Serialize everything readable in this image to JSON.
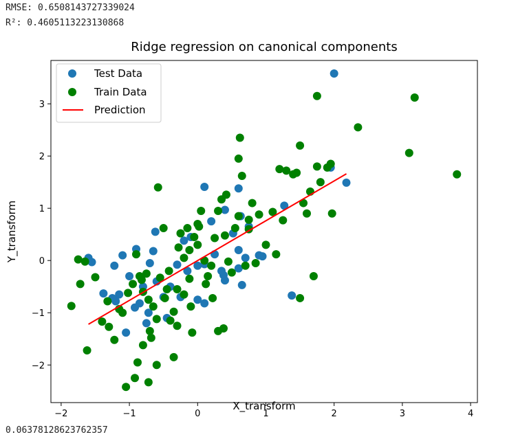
{
  "output": {
    "rmse_line": "RMSE: 0.6508143727339024",
    "r2_line": "R²: 0.4605113223130868",
    "final_value": "0.06378128623762357"
  },
  "chart_data": {
    "type": "scatter",
    "title": "Ridge regression on canonical components",
    "xlabel": "X_transform",
    "ylabel": "Y_transform",
    "xlim": [
      -2.15,
      4.1
    ],
    "ylim": [
      -2.72,
      3.83
    ],
    "xticks": [
      -2,
      -1,
      0,
      1,
      2,
      3,
      4
    ],
    "yticks": [
      -2,
      -1,
      0,
      1,
      2,
      3
    ],
    "xtick_labels": [
      "−2",
      "−1",
      "0",
      "1",
      "2",
      "3",
      "4"
    ],
    "ytick_labels": [
      "−2",
      "−1",
      "0",
      "1",
      "2",
      "3"
    ],
    "legend_position": "upper-left",
    "series": [
      {
        "name": "Test Data",
        "kind": "scatter",
        "color": "#1f77b4",
        "points": [
          [
            2.0,
            3.58
          ],
          [
            1.95,
            1.78
          ],
          [
            2.18,
            1.49
          ],
          [
            1.38,
            -0.67
          ],
          [
            1.27,
            1.05
          ],
          [
            0.6,
            1.38
          ],
          [
            0.1,
            1.41
          ],
          [
            0.2,
            0.75
          ],
          [
            0.4,
            0.97
          ],
          [
            0.63,
            0.85
          ],
          [
            0.75,
            0.65
          ],
          [
            0.9,
            0.1
          ],
          [
            0.95,
            0.08
          ],
          [
            0.7,
            0.05
          ],
          [
            0.6,
            0.2
          ],
          [
            0.4,
            -0.38
          ],
          [
            0.38,
            -0.28
          ],
          [
            0.65,
            -0.47
          ],
          [
            0.6,
            -0.15
          ],
          [
            0.1,
            -0.07
          ],
          [
            0.0,
            -0.1
          ],
          [
            0.0,
            -0.75
          ],
          [
            0.1,
            -0.82
          ],
          [
            -0.1,
            0.45
          ],
          [
            -0.2,
            0.38
          ],
          [
            -0.3,
            -0.08
          ],
          [
            -0.4,
            -0.5
          ],
          [
            -0.5,
            -0.7
          ],
          [
            -0.6,
            -0.4
          ],
          [
            -0.62,
            0.55
          ],
          [
            -0.65,
            0.18
          ],
          [
            -0.7,
            -0.05
          ],
          [
            -0.72,
            -1.0
          ],
          [
            -0.75,
            -1.2
          ],
          [
            -0.8,
            -0.5
          ],
          [
            -0.85,
            -0.82
          ],
          [
            -0.9,
            0.22
          ],
          [
            -0.92,
            -0.9
          ],
          [
            -1.0,
            -0.3
          ],
          [
            -1.05,
            -1.38
          ],
          [
            -1.1,
            0.1
          ],
          [
            -1.15,
            -0.65
          ],
          [
            -1.2,
            -0.78
          ],
          [
            -1.25,
            -0.72
          ],
          [
            -1.22,
            -0.1
          ],
          [
            -1.55,
            -0.03
          ],
          [
            -1.6,
            0.05
          ],
          [
            -1.38,
            -0.63
          ],
          [
            -0.45,
            -1.1
          ],
          [
            -0.25,
            -0.7
          ],
          [
            -0.15,
            -0.2
          ],
          [
            0.25,
            0.12
          ],
          [
            0.52,
            0.52
          ],
          [
            0.35,
            -0.2
          ]
        ]
      },
      {
        "name": "Train Data",
        "kind": "scatter",
        "color": "#008000",
        "points": [
          [
            -1.85,
            -0.87
          ],
          [
            -1.72,
            -0.45
          ],
          [
            -1.75,
            0.02
          ],
          [
            -1.65,
            -0.02
          ],
          [
            -1.62,
            -1.72
          ],
          [
            -1.5,
            -0.32
          ],
          [
            -1.4,
            -1.17
          ],
          [
            -1.3,
            -1.27
          ],
          [
            -1.32,
            -0.78
          ],
          [
            -1.22,
            -1.52
          ],
          [
            -1.15,
            -0.93
          ],
          [
            -1.1,
            -1.0
          ],
          [
            -1.05,
            -2.42
          ],
          [
            -1.02,
            -0.62
          ],
          [
            -0.95,
            -0.45
          ],
          [
            -0.92,
            -2.25
          ],
          [
            -0.9,
            0.12
          ],
          [
            -0.85,
            -0.3
          ],
          [
            -0.82,
            -0.37
          ],
          [
            -0.8,
            -0.6
          ],
          [
            -0.75,
            -0.25
          ],
          [
            -0.72,
            -0.75
          ],
          [
            -0.7,
            -1.35
          ],
          [
            -0.68,
            -1.48
          ],
          [
            -0.65,
            -0.88
          ],
          [
            -0.6,
            -1.12
          ],
          [
            -0.55,
            -0.33
          ],
          [
            -0.5,
            0.62
          ],
          [
            -0.48,
            -0.72
          ],
          [
            -0.45,
            -0.55
          ],
          [
            -0.4,
            -1.15
          ],
          [
            -0.35,
            -0.98
          ],
          [
            -0.3,
            -1.25
          ],
          [
            -0.28,
            0.25
          ],
          [
            -0.25,
            0.52
          ],
          [
            -0.2,
            0.05
          ],
          [
            -0.15,
            0.62
          ],
          [
            -0.12,
            -0.35
          ],
          [
            -0.1,
            -0.88
          ],
          [
            -0.08,
            -1.38
          ],
          [
            -0.05,
            0.45
          ],
          [
            0.0,
            0.3
          ],
          [
            0.02,
            0.65
          ],
          [
            0.05,
            0.95
          ],
          [
            0.1,
            0.0
          ],
          [
            0.12,
            -0.45
          ],
          [
            0.15,
            -0.3
          ],
          [
            0.2,
            -0.1
          ],
          [
            0.25,
            0.43
          ],
          [
            0.3,
            -1.35
          ],
          [
            0.35,
            1.17
          ],
          [
            0.38,
            -1.3
          ],
          [
            0.4,
            0.48
          ],
          [
            0.42,
            1.26
          ],
          [
            0.45,
            -0.02
          ],
          [
            0.5,
            -0.23
          ],
          [
            0.55,
            0.62
          ],
          [
            0.6,
            0.85
          ],
          [
            0.62,
            2.35
          ],
          [
            0.65,
            1.62
          ],
          [
            0.7,
            -0.1
          ],
          [
            0.75,
            0.78
          ],
          [
            0.8,
            1.1
          ],
          [
            0.85,
            -0.05
          ],
          [
            0.9,
            0.88
          ],
          [
            1.0,
            0.3
          ],
          [
            1.1,
            0.93
          ],
          [
            1.15,
            0.12
          ],
          [
            1.2,
            1.75
          ],
          [
            1.25,
            0.77
          ],
          [
            1.3,
            1.72
          ],
          [
            1.4,
            1.65
          ],
          [
            1.5,
            2.2
          ],
          [
            1.55,
            1.1
          ],
          [
            1.6,
            0.9
          ],
          [
            1.65,
            1.32
          ],
          [
            1.7,
            -0.3
          ],
          [
            1.75,
            3.15
          ],
          [
            1.8,
            1.5
          ],
          [
            1.9,
            1.78
          ],
          [
            1.95,
            1.85
          ],
          [
            1.97,
            0.9
          ],
          [
            2.35,
            2.55
          ],
          [
            3.1,
            2.06
          ],
          [
            3.18,
            3.12
          ],
          [
            3.8,
            1.65
          ],
          [
            1.5,
            -0.72
          ],
          [
            1.75,
            1.8
          ],
          [
            1.45,
            1.68
          ],
          [
            -0.8,
            -1.62
          ],
          [
            -0.72,
            -2.33
          ],
          [
            -0.6,
            -2.0
          ],
          [
            -0.35,
            -1.85
          ],
          [
            -0.58,
            1.4
          ],
          [
            -0.3,
            -0.55
          ],
          [
            -0.2,
            -0.65
          ],
          [
            -0.88,
            -1.95
          ],
          [
            -0.42,
            -0.2
          ],
          [
            0.6,
            1.95
          ],
          [
            0.0,
            0.7
          ],
          [
            0.3,
            0.95
          ],
          [
            -0.12,
            0.2
          ],
          [
            0.22,
            -0.72
          ],
          [
            0.75,
            0.6
          ]
        ]
      },
      {
        "name": "Prediction",
        "kind": "line",
        "color": "#ff0000",
        "points": [
          [
            -1.6,
            -1.22
          ],
          [
            2.18,
            1.66
          ]
        ]
      }
    ]
  }
}
